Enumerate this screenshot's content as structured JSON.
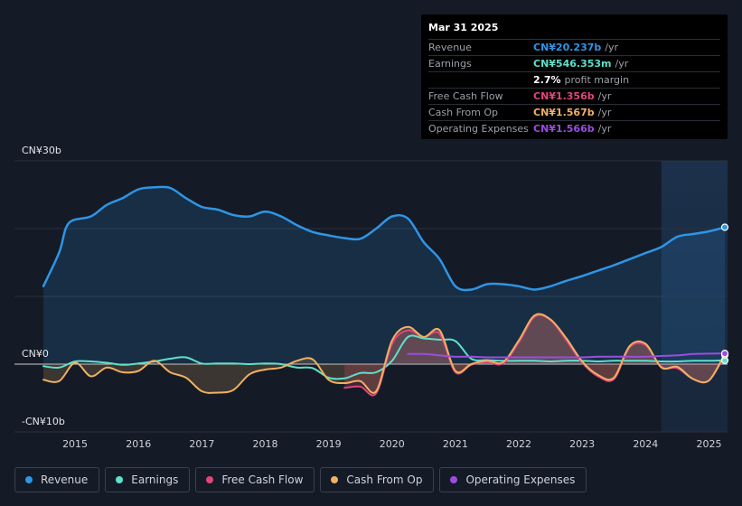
{
  "chart_data": {
    "type": "line",
    "title": "",
    "xlabel": "",
    "ylabel": "",
    "ylim": [
      -10,
      30
    ],
    "xlim": [
      2014.5,
      2025.25
    ],
    "y_tick_labels": [
      "CN¥30b",
      "CN¥0",
      "-CN¥10b"
    ],
    "y_tick_values": [
      30,
      0,
      -10
    ],
    "x_ticks": [
      "2015",
      "2016",
      "2017",
      "2018",
      "2019",
      "2020",
      "2021",
      "2022",
      "2023",
      "2024",
      "2025"
    ],
    "x_tick_values": [
      2015,
      2016,
      2017,
      2018,
      2019,
      2020,
      2021,
      2022,
      2023,
      2024,
      2025
    ],
    "highlight_from": 2024.25,
    "series": [
      {
        "name": "Revenue",
        "color": "#2f95e6",
        "fill": true,
        "x": [
          2014.5,
          2014.75,
          2014.9,
          2015.25,
          2015.5,
          2015.75,
          2016.0,
          2016.25,
          2016.5,
          2016.75,
          2017.0,
          2017.25,
          2017.5,
          2017.75,
          2018.0,
          2018.25,
          2018.5,
          2018.75,
          2019.0,
          2019.25,
          2019.5,
          2019.75,
          2020.0,
          2020.25,
          2020.5,
          2020.75,
          2021.0,
          2021.25,
          2021.5,
          2021.75,
          2022.0,
          2022.25,
          2022.5,
          2022.75,
          2023.0,
          2023.25,
          2023.5,
          2023.75,
          2024.0,
          2024.25,
          2024.5,
          2024.75,
          2025.0,
          2025.25
        ],
        "values": [
          11.5,
          16.5,
          20.8,
          21.8,
          23.5,
          24.5,
          25.8,
          26.1,
          26.0,
          24.5,
          23.2,
          22.8,
          22.0,
          21.8,
          22.5,
          21.8,
          20.5,
          19.5,
          19.0,
          18.6,
          18.5,
          20.0,
          21.8,
          21.5,
          18.0,
          15.5,
          11.5,
          11.0,
          11.8,
          11.8,
          11.5,
          11.0,
          11.5,
          12.3,
          13.0,
          13.8,
          14.6,
          15.5,
          16.4,
          17.3,
          18.8,
          19.2,
          19.6,
          20.2
        ]
      },
      {
        "name": "Earnings",
        "color": "#5ee0cc",
        "fill": false,
        "x": [
          2014.5,
          2014.75,
          2015.0,
          2015.25,
          2015.5,
          2015.75,
          2016.0,
          2016.25,
          2016.5,
          2016.75,
          2017.0,
          2017.25,
          2017.5,
          2017.75,
          2018.0,
          2018.25,
          2018.5,
          2018.75,
          2019.0,
          2019.25,
          2019.5,
          2019.75,
          2020.0,
          2020.25,
          2020.5,
          2020.75,
          2021.0,
          2021.25,
          2021.5,
          2021.75,
          2022.0,
          2022.25,
          2022.5,
          2022.75,
          2023.0,
          2023.25,
          2023.5,
          2023.75,
          2024.0,
          2024.25,
          2024.5,
          2024.75,
          2025.0,
          2025.25
        ],
        "values": [
          -0.3,
          -0.5,
          0.4,
          0.4,
          0.2,
          -0.1,
          0.1,
          0.4,
          0.8,
          1.0,
          0.1,
          0.1,
          0.1,
          0.0,
          0.1,
          0.0,
          -0.5,
          -0.6,
          -2.0,
          -2.1,
          -1.3,
          -1.2,
          0.5,
          4.0,
          3.8,
          3.6,
          3.4,
          0.8,
          0.6,
          0.5,
          0.5,
          0.5,
          0.4,
          0.5,
          0.5,
          0.4,
          0.5,
          0.5,
          0.5,
          0.4,
          0.4,
          0.5,
          0.5,
          0.55
        ]
      },
      {
        "name": "Free Cash Flow",
        "color": "#e0467c",
        "fill": true,
        "x": [
          2019.25,
          2019.5,
          2019.75,
          2020.0,
          2020.25,
          2020.5,
          2020.75,
          2021.0,
          2021.25,
          2021.5,
          2021.75,
          2022.0,
          2022.25,
          2022.5,
          2022.75,
          2023.0,
          2023.25,
          2023.5,
          2023.75,
          2024.0,
          2024.25,
          2024.5,
          2024.75,
          2025.0,
          2025.25
        ],
        "values": [
          -3.5,
          -3.3,
          -4.3,
          3.0,
          5.0,
          4.0,
          4.5,
          -1.2,
          -0.1,
          0.3,
          0.1,
          3.2,
          7.0,
          6.5,
          3.5,
          0.2,
          -1.8,
          -2.2,
          2.5,
          2.8,
          -0.4,
          -0.6,
          -2.2,
          -2.4,
          1.36
        ]
      },
      {
        "name": "Cash From Op",
        "color": "#f0b062",
        "fill": true,
        "x": [
          2014.5,
          2014.75,
          2015.0,
          2015.25,
          2015.5,
          2015.75,
          2016.0,
          2016.25,
          2016.5,
          2016.75,
          2017.0,
          2017.25,
          2017.5,
          2017.75,
          2018.0,
          2018.25,
          2018.5,
          2018.75,
          2019.0,
          2019.25,
          2019.5,
          2019.75,
          2020.0,
          2020.25,
          2020.5,
          2020.75,
          2021.0,
          2021.25,
          2021.5,
          2021.75,
          2022.0,
          2022.25,
          2022.5,
          2022.75,
          2023.0,
          2023.25,
          2023.5,
          2023.75,
          2024.0,
          2024.25,
          2024.5,
          2024.75,
          2025.0,
          2025.25
        ],
        "values": [
          -2.3,
          -2.5,
          0.2,
          -1.8,
          -0.5,
          -1.2,
          -1.0,
          0.5,
          -1.2,
          -2.0,
          -4.0,
          -4.2,
          -3.8,
          -1.5,
          -0.8,
          -0.5,
          0.5,
          0.7,
          -2.3,
          -2.8,
          -2.5,
          -4.0,
          3.5,
          5.5,
          4.0,
          5.0,
          -1.0,
          0.0,
          0.5,
          0.3,
          3.5,
          7.2,
          6.6,
          3.8,
          0.4,
          -1.6,
          -2.0,
          2.7,
          3.0,
          -0.5,
          -0.4,
          -2.2,
          -2.4,
          1.57
        ]
      },
      {
        "name": "Operating Expenses",
        "color": "#9b4de0",
        "fill": false,
        "x": [
          2020.25,
          2020.5,
          2020.75,
          2021.0,
          2021.25,
          2021.5,
          2021.75,
          2022.0,
          2022.25,
          2022.5,
          2022.75,
          2023.0,
          2023.25,
          2023.5,
          2023.75,
          2024.0,
          2024.25,
          2024.5,
          2024.75,
          2025.0,
          2025.25
        ],
        "values": [
          1.5,
          1.5,
          1.3,
          1.1,
          1.1,
          1.0,
          1.0,
          1.0,
          1.0,
          1.0,
          1.0,
          1.0,
          1.1,
          1.1,
          1.1,
          1.1,
          1.2,
          1.3,
          1.5,
          1.55,
          1.57
        ]
      }
    ]
  },
  "tooltip": {
    "date": "Mar 31 2025",
    "rows": [
      {
        "label": "Revenue",
        "value": "CN¥20.237b",
        "unit": "/yr",
        "color": "#2f95e6"
      },
      {
        "label": "Earnings",
        "value": "CN¥546.353m",
        "unit": "/yr",
        "color": "#5ee0cc"
      },
      {
        "label": "Free Cash Flow",
        "value": "CN¥1.356b",
        "unit": "/yr",
        "color": "#e0467c"
      },
      {
        "label": "Cash From Op",
        "value": "CN¥1.567b",
        "unit": "/yr",
        "color": "#f0b062"
      },
      {
        "label": "Operating Expenses",
        "value": "CN¥1.566b",
        "unit": "/yr",
        "color": "#9b4de0"
      }
    ],
    "margin_value": "2.7%",
    "margin_label": "profit margin"
  },
  "legend": [
    {
      "label": "Revenue",
      "color": "#2f95e6"
    },
    {
      "label": "Earnings",
      "color": "#5ee0cc"
    },
    {
      "label": "Free Cash Flow",
      "color": "#e0467c"
    },
    {
      "label": "Cash From Op",
      "color": "#f0b062"
    },
    {
      "label": "Operating Expenses",
      "color": "#9b4de0"
    }
  ]
}
